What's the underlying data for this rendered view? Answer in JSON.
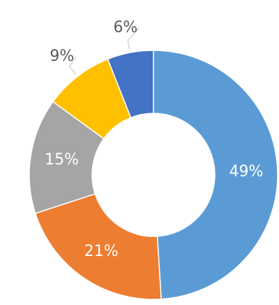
{
  "chart_data": {
    "type": "donut",
    "values": [
      49,
      21,
      15,
      9,
      6
    ],
    "value_labels": [
      "49%",
      "21%",
      "15%",
      "9%",
      "6%"
    ],
    "colors": [
      "#5b9bd5",
      "#ed7d31",
      "#a5a5a5",
      "#ffc000",
      "#4472c4"
    ]
  }
}
